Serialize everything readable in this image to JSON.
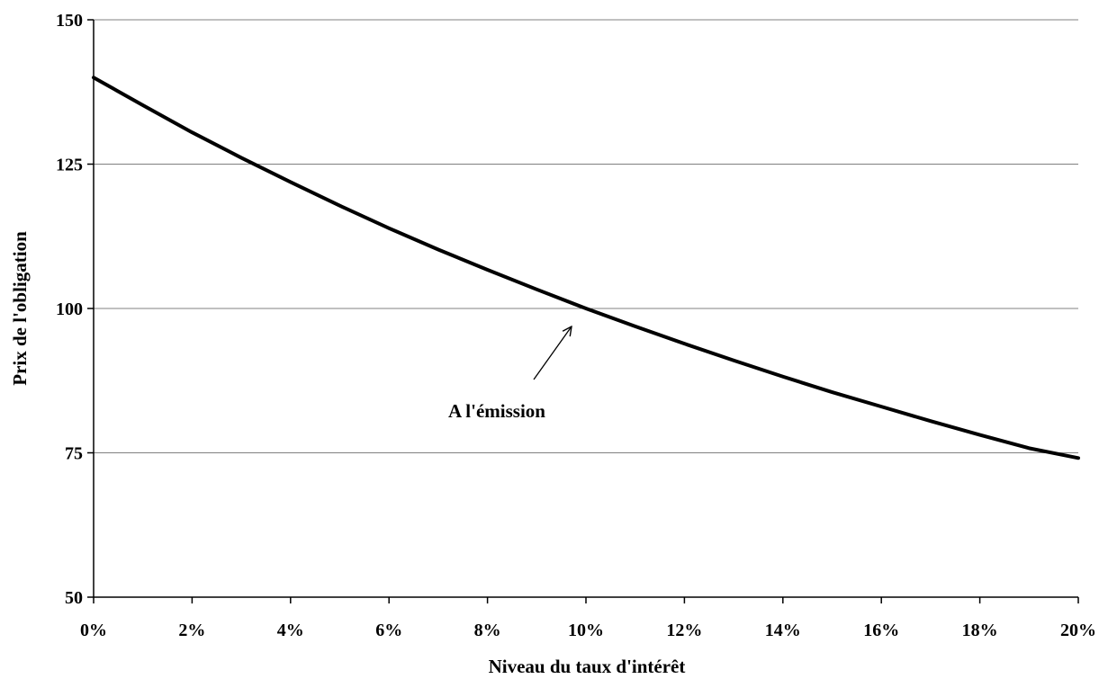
{
  "chart_data": {
    "type": "line",
    "title": "",
    "xlabel": "Niveau du taux d'intérêt",
    "ylabel": "Prix de l'obligation",
    "xlim": [
      0,
      20
    ],
    "ylim": [
      50,
      150
    ],
    "x_ticks": [
      0,
      2,
      4,
      6,
      8,
      10,
      12,
      14,
      16,
      18,
      20
    ],
    "x_tick_labels": [
      "0%",
      "2%",
      "4%",
      "6%",
      "8%",
      "10%",
      "12%",
      "14%",
      "16%",
      "18%",
      "20%"
    ],
    "y_ticks": [
      50,
      75,
      100,
      125,
      150
    ],
    "y_tick_labels": [
      "50",
      "75",
      "100",
      "125",
      "150"
    ],
    "grid": "horizontal",
    "legend": "none",
    "line_color": "#000000",
    "series": [
      {
        "x": [
          0,
          1,
          2,
          3,
          4,
          5,
          6,
          7,
          8,
          9,
          10,
          11,
          12,
          13,
          14,
          15,
          16,
          17,
          18,
          19,
          20
        ],
        "values": [
          140,
          135.2,
          130.5,
          126.1,
          121.9,
          117.8,
          113.9,
          110.2,
          106.7,
          103.3,
          100,
          96.9,
          93.9,
          91.0,
          88.2,
          85.5,
          83.0,
          80.5,
          78.1,
          75.8,
          74.1
        ]
      }
    ],
    "annotations": [
      {
        "text": "A l'émission",
        "target_x": 10,
        "target_y": 100
      }
    ]
  }
}
